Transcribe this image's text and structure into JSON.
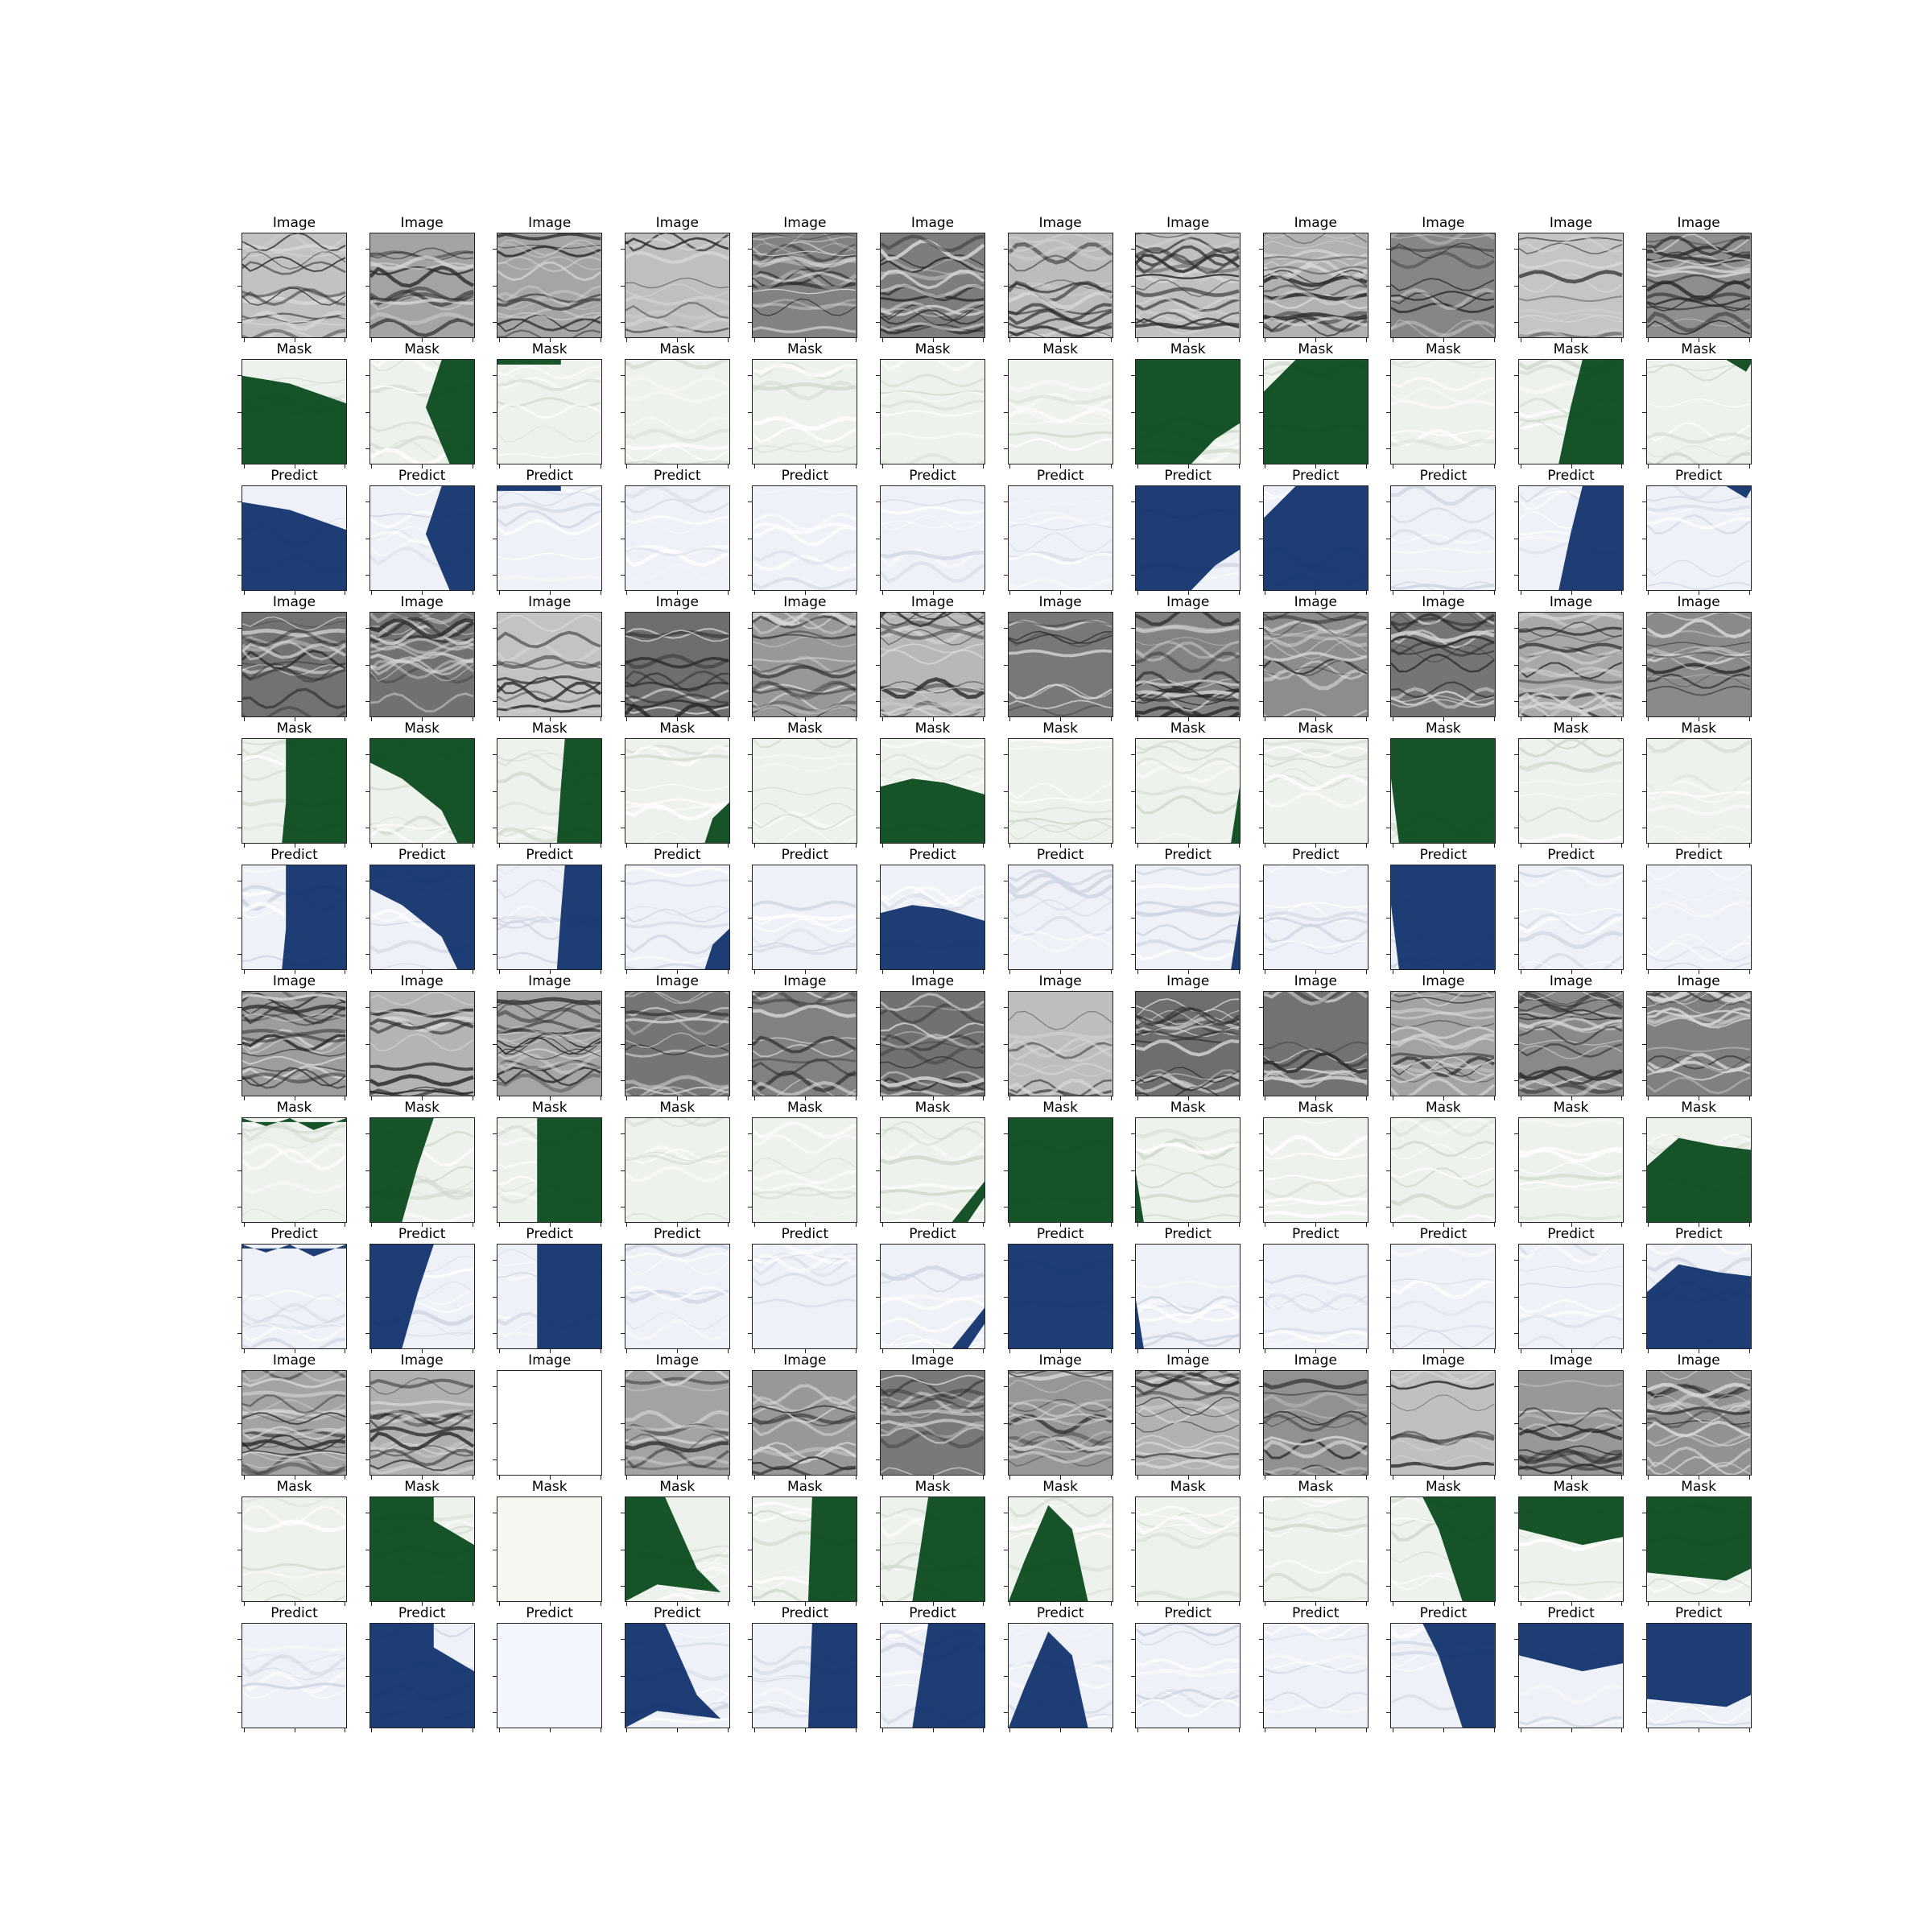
{
  "figure": {
    "rows": [
      [
        "Image",
        "Image",
        "Image",
        "Image",
        "Image",
        "Image",
        "Image",
        "Image",
        "Image",
        "Image",
        "Image",
        "Image"
      ],
      [
        "Mask",
        "Mask",
        "Mask",
        "Mask",
        "Mask",
        "Mask",
        "Mask",
        "Mask",
        "Mask",
        "Mask",
        "Mask",
        "Mask"
      ],
      [
        "Predict",
        "Predict",
        "Predict",
        "Predict",
        "Predict",
        "Predict",
        "Predict",
        "Predict",
        "Predict",
        "Predict",
        "Predict",
        "Predict"
      ],
      [
        "Image",
        "Image",
        "Image",
        "Image",
        "Image",
        "Image",
        "Image",
        "Image",
        "Image",
        "Image",
        "Image",
        "Image"
      ],
      [
        "Mask",
        "Mask",
        "Mask",
        "Mask",
        "Mask",
        "Mask",
        "Mask",
        "Mask",
        "Mask",
        "Mask",
        "Mask",
        "Mask"
      ],
      [
        "Predict",
        "Predict",
        "Predict",
        "Predict",
        "Predict",
        "Predict",
        "Predict",
        "Predict",
        "Predict",
        "Predict",
        "Predict",
        "Predict"
      ],
      [
        "Image",
        "Image",
        "Image",
        "Image",
        "Image",
        "Image",
        "Image",
        "Image",
        "Image",
        "Image",
        "Image",
        "Image"
      ],
      [
        "Mask",
        "Mask",
        "Mask",
        "Mask",
        "Mask",
        "Mask",
        "Mask",
        "Mask",
        "Mask",
        "Mask",
        "Mask",
        "Mask"
      ],
      [
        "Predict",
        "Predict",
        "Predict",
        "Predict",
        "Predict",
        "Predict",
        "Predict",
        "Predict",
        "Predict",
        "Predict",
        "Predict",
        "Predict"
      ],
      [
        "Image",
        "Image",
        "Image",
        "Image",
        "Image",
        "Image",
        "Image",
        "Image",
        "Image",
        "Image",
        "Image",
        "Image"
      ],
      [
        "Mask",
        "Mask",
        "Mask",
        "Mask",
        "Mask",
        "Mask",
        "Mask",
        "Mask",
        "Mask",
        "Mask",
        "Mask",
        "Mask"
      ],
      [
        "Predict",
        "Predict",
        "Predict",
        "Predict",
        "Predict",
        "Predict",
        "Predict",
        "Predict",
        "Predict",
        "Predict",
        "Predict",
        "Predict"
      ]
    ]
  },
  "colors": {
    "image_dark": "#2a2a2a",
    "image_light": "#d8d8d8",
    "mask_fill": "#0b4a1e",
    "mask_background": "#eef2ec",
    "predict_fill": "#12336e",
    "predict_background": "#eef1f7",
    "axis": "#222222"
  }
}
